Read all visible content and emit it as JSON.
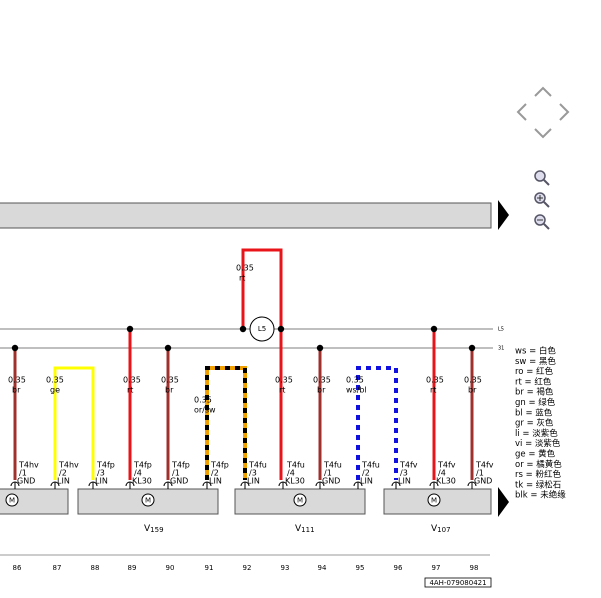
{
  "bus_labels": [
    "L5",
    "31"
  ],
  "splice": "L5",
  "top_wire": {
    "size": "0.35",
    "color": "rt"
  },
  "wires": [
    {
      "size": "0.35",
      "color": "br"
    },
    {
      "size": "0.35",
      "color": "ge"
    },
    {
      "size": "0.35",
      "color": "rt"
    },
    {
      "size": "0.35",
      "color": "br"
    },
    {
      "size": "0.35",
      "color": "or/sw"
    },
    {
      "size": "0.35",
      "color": "rt"
    },
    {
      "size": "0.35",
      "color": "br"
    },
    {
      "size": "0.35",
      "color": "ws/bl"
    },
    {
      "size": "0.35",
      "color": "rt"
    },
    {
      "size": "0.35",
      "color": "br"
    }
  ],
  "connectors": [
    {
      "name": "T4hv",
      "pin": "/1",
      "func": "GND"
    },
    {
      "name": "T4hv",
      "pin": "/2",
      "func": "LIN"
    },
    {
      "name": "T4fp",
      "pin": "/3",
      "func": "LIN"
    },
    {
      "name": "T4fp",
      "pin": "/4",
      "func": "KL30"
    },
    {
      "name": "T4fp",
      "pin": "/1",
      "func": "GND"
    },
    {
      "name": "T4fp",
      "pin": "/2",
      "func": "LIN"
    },
    {
      "name": "T4fu",
      "pin": "/3",
      "func": "LIN"
    },
    {
      "name": "T4fu",
      "pin": "/4",
      "func": "KL30"
    },
    {
      "name": "T4fu",
      "pin": "/1",
      "func": "GND"
    },
    {
      "name": "T4fu",
      "pin": "/2",
      "func": "LIN"
    },
    {
      "name": "T4fv",
      "pin": "/3",
      "func": "LIN"
    },
    {
      "name": "T4fv",
      "pin": "/4",
      "func": "KL30"
    },
    {
      "name": "T4fv",
      "pin": "/1",
      "func": "GND"
    }
  ],
  "motor_symbol": "M",
  "components": [
    {
      "letter": "V",
      "number": "159"
    },
    {
      "letter": "V",
      "number": "111"
    },
    {
      "letter": "V",
      "number": "107"
    }
  ],
  "columns": [
    "86",
    "87",
    "88",
    "89",
    "90",
    "91",
    "92",
    "93",
    "94",
    "95",
    "96",
    "97",
    "98"
  ],
  "legend": [
    "ws = 白色",
    "sw = 黑色",
    "ro = 红色",
    "rt = 红色",
    "br = 褐色",
    "gn = 绿色",
    "bl = 蓝色",
    "gr = 灰色",
    "li = 淡紫色",
    "vi = 淡紫色",
    "ge = 黄色",
    "or = 橘黄色",
    "rs = 粉红色",
    "tk = 绿松石",
    "blk = 未绝缘"
  ],
  "doc_id": "4AH-079080421"
}
